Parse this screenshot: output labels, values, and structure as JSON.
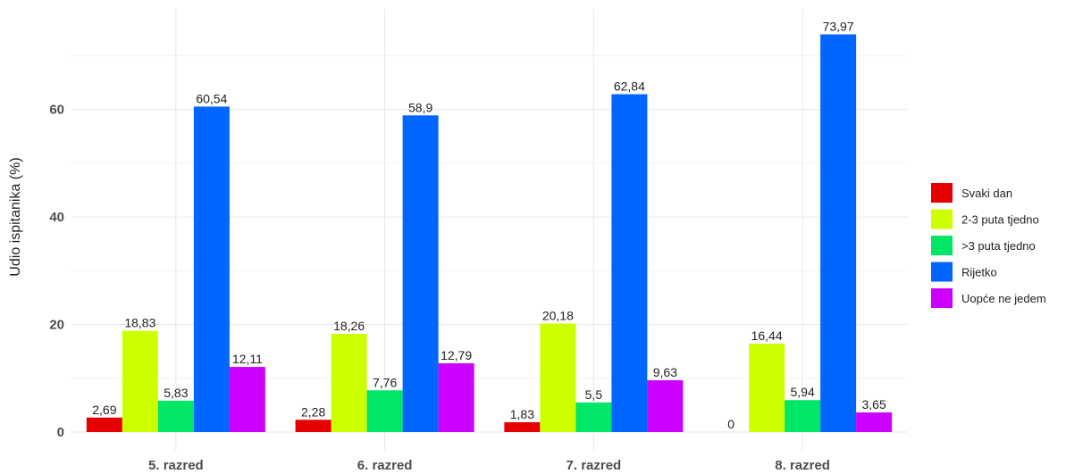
{
  "chart_data": {
    "type": "bar",
    "title": "",
    "xlabel": "",
    "ylabel": "Udio ispitanika (%)",
    "ylim": [
      0,
      76
    ],
    "yticks": [
      0,
      20,
      40,
      60
    ],
    "grid": true,
    "legend_position": "right",
    "categories": [
      "5. razred",
      "6. razred",
      "7. razred",
      "8. razred"
    ],
    "series": [
      {
        "name": "Svaki dan",
        "color": "#e60000",
        "values": [
          2.69,
          2.28,
          1.83,
          0
        ],
        "labels": [
          "2,69",
          "2,28",
          "1,83",
          "0"
        ]
      },
      {
        "name": "2-3 puta tjedno",
        "color": "#ccff00",
        "values": [
          18.83,
          18.26,
          20.18,
          16.44
        ],
        "labels": [
          "18,83",
          "18,26",
          "20,18",
          "16,44"
        ]
      },
      {
        "name": ">3 puta tjedno",
        "color": "#00e666",
        "values": [
          5.83,
          7.76,
          5.5,
          5.94
        ],
        "labels": [
          "5,83",
          "7,76",
          "5,5",
          "5,94"
        ]
      },
      {
        "name": "Rijetko",
        "color": "#0066ff",
        "values": [
          60.54,
          58.9,
          62.84,
          73.97
        ],
        "labels": [
          "60,54",
          "58,9",
          "62,84",
          "73,97"
        ]
      },
      {
        "name": "Uopće ne jedem",
        "color": "#cc00ff",
        "values": [
          12.11,
          12.79,
          9.63,
          3.65
        ],
        "labels": [
          "12,11",
          "12,79",
          "9,63",
          "3,65"
        ]
      }
    ]
  }
}
